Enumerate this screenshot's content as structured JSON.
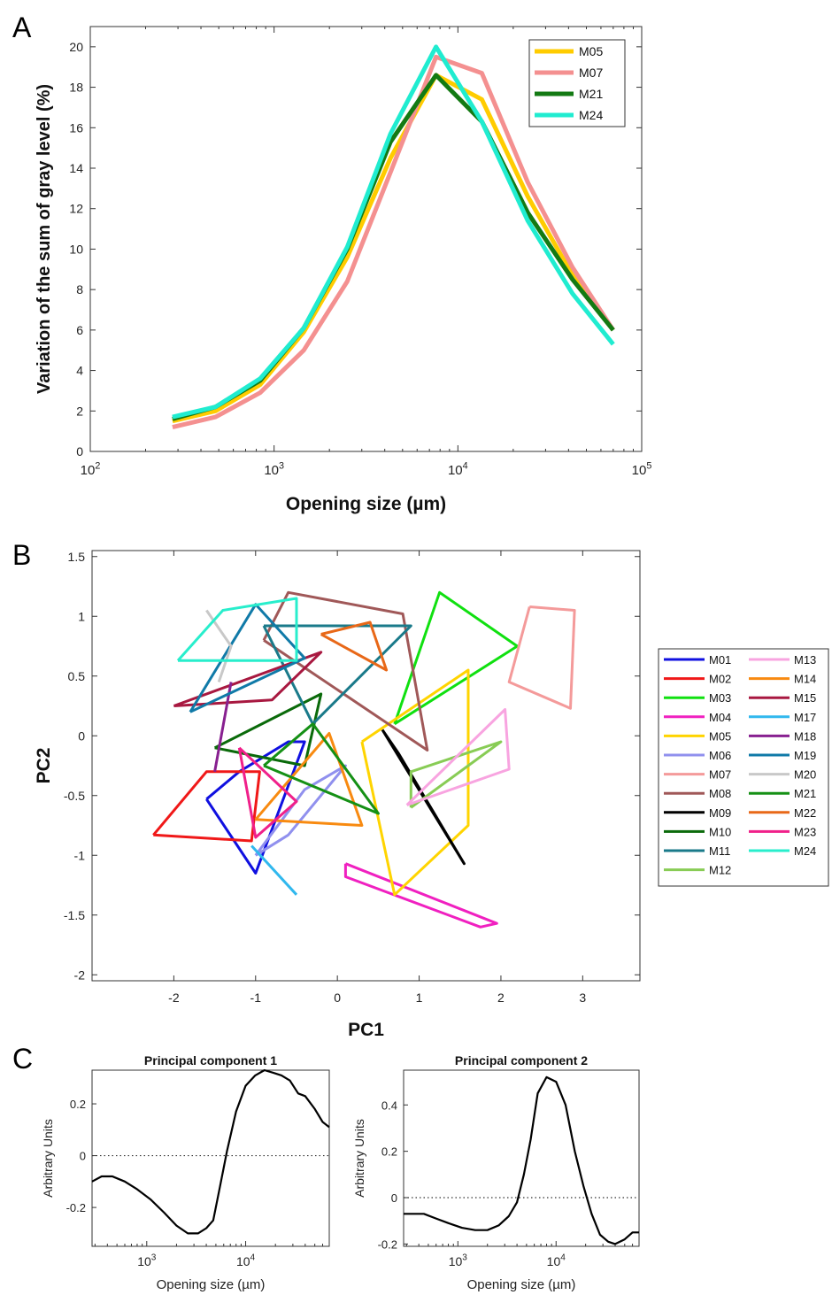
{
  "panel_labels": [
    "A",
    "B",
    "C"
  ],
  "colors": {
    "M01": "#1010e0",
    "M02": "#f01818",
    "M03": "#10e010",
    "M04": "#f020c0",
    "M05": "#ffd400",
    "M06": "#9090ee",
    "M07": "#f49a9a",
    "M08": "#a05858",
    "M09": "#000000",
    "M10": "#0a6a0a",
    "M11": "#1a7a8a",
    "M12": "#88cc55",
    "M13": "#f8a4e0",
    "M14": "#f88a10",
    "M15": "#a81840",
    "M17": "#30b8ee",
    "M18": "#882090",
    "M19": "#107aa8",
    "M20": "#c8c8c8",
    "M21": "#159015",
    "M22": "#e86818",
    "M23": "#f0208a",
    "M24": "#28eecc",
    "M05_A": "#ffcc00",
    "M07_A": "#f49090",
    "M21_A": "#137a13",
    "M24_A": "#20ecd0"
  },
  "chart_data": [
    {
      "type": "line",
      "xscale": "log",
      "xlabel": "Opening size (µm)",
      "ylabel": "Variation of the sum of gray level (%)",
      "xlim": [
        100,
        100000
      ],
      "ylim": [
        0,
        21
      ],
      "xticks": [
        {
          "value": 100,
          "base": "10",
          "exp": "2"
        },
        {
          "value": 1000,
          "base": "10",
          "exp": "3"
        },
        {
          "value": 10000,
          "base": "10",
          "exp": "4"
        },
        {
          "value": 100000,
          "base": "10",
          "exp": "5"
        }
      ],
      "yticks": [
        "0",
        "2",
        "4",
        "6",
        "8",
        "10",
        "12",
        "14",
        "16",
        "18",
        "20"
      ],
      "legend": "top-right",
      "x": [
        280,
        480,
        840,
        1450,
        2500,
        4300,
        7600,
        13500,
        24000,
        42000,
        70000
      ],
      "series": [
        {
          "name": "M05",
          "color_key": "M05_A",
          "values": [
            1.5,
            2.0,
            3.3,
            5.9,
            9.6,
            14.5,
            18.6,
            17.4,
            12.6,
            8.7,
            6.0
          ]
        },
        {
          "name": "M07",
          "color_key": "M07_A",
          "values": [
            1.2,
            1.7,
            2.9,
            5.0,
            8.4,
            13.8,
            19.5,
            18.7,
            13.3,
            9.1,
            6.0
          ]
        },
        {
          "name": "M21",
          "color_key": "M21_A",
          "values": [
            1.6,
            2.2,
            3.5,
            6.1,
            10.0,
            15.3,
            18.6,
            16.3,
            11.8,
            8.5,
            6.0
          ]
        },
        {
          "name": "M24",
          "color_key": "M24_A",
          "values": [
            1.7,
            2.2,
            3.6,
            6.1,
            10.1,
            15.7,
            20.0,
            16.3,
            11.4,
            7.8,
            5.3
          ]
        }
      ]
    },
    {
      "type": "scatter",
      "xlabel": "PC1",
      "ylabel": "PC2",
      "xlim": [
        -3.0,
        3.7
      ],
      "ylim": [
        -2.05,
        1.55
      ],
      "xticks": [
        "-2",
        "-1",
        "0",
        "1",
        "2",
        "3"
      ],
      "yticks": [
        "-2",
        "-1.5",
        "-1",
        "-0.5",
        "0",
        "0.5",
        "1",
        "1.5"
      ],
      "legend": "right",
      "series": [
        {
          "name": "M01",
          "points": [
            [
              -1.6,
              -0.53
            ],
            [
              -1.2,
              -0.3
            ],
            [
              -0.6,
              -0.05
            ],
            [
              -0.4,
              -0.05
            ],
            [
              -1.0,
              -1.15
            ],
            [
              -1.6,
              -0.53
            ]
          ]
        },
        {
          "name": "M02",
          "points": [
            [
              -2.25,
              -0.83
            ],
            [
              -1.05,
              -0.88
            ],
            [
              -0.95,
              -0.3
            ],
            [
              -1.6,
              -0.3
            ],
            [
              -2.25,
              -0.83
            ]
          ]
        },
        {
          "name": "M03",
          "points": [
            [
              0.7,
              0.1
            ],
            [
              1.25,
              1.2
            ],
            [
              2.2,
              0.75
            ],
            [
              0.7,
              0.1
            ]
          ]
        },
        {
          "name": "M04",
          "points": [
            [
              0.1,
              -1.07
            ],
            [
              0.1,
              -1.18
            ],
            [
              1.75,
              -1.6
            ],
            [
              1.95,
              -1.57
            ],
            [
              0.1,
              -1.07
            ]
          ]
        },
        {
          "name": "M05",
          "points": [
            [
              0.3,
              -0.05
            ],
            [
              0.7,
              -1.33
            ],
            [
              1.6,
              -0.75
            ],
            [
              1.6,
              0.55
            ],
            [
              0.3,
              -0.05
            ]
          ]
        },
        {
          "name": "M06",
          "points": [
            [
              -1.0,
              -1.0
            ],
            [
              -0.6,
              -0.83
            ],
            [
              0.1,
              -0.25
            ],
            [
              -0.4,
              -0.45
            ],
            [
              -1.0,
              -1.0
            ]
          ]
        },
        {
          "name": "M07",
          "points": [
            [
              2.35,
              1.08
            ],
            [
              2.9,
              1.05
            ],
            [
              2.85,
              0.23
            ],
            [
              2.1,
              0.45
            ],
            [
              2.35,
              1.08
            ]
          ]
        },
        {
          "name": "M08",
          "points": [
            [
              -0.9,
              0.8
            ],
            [
              -0.6,
              1.2
            ],
            [
              0.8,
              1.02
            ],
            [
              1.1,
              -0.12
            ],
            [
              -0.9,
              0.8
            ]
          ]
        },
        {
          "name": "M09",
          "points": [
            [
              0.55,
              0.05
            ],
            [
              1.55,
              -1.07
            ],
            [
              0.75,
              -0.15
            ],
            [
              0.55,
              0.05
            ]
          ]
        },
        {
          "name": "M10",
          "points": [
            [
              -1.5,
              -0.1
            ],
            [
              -0.2,
              0.35
            ],
            [
              -0.4,
              -0.25
            ],
            [
              -1.5,
              -0.1
            ]
          ]
        },
        {
          "name": "M11",
          "points": [
            [
              -0.9,
              0.92
            ],
            [
              0.9,
              0.92
            ],
            [
              -0.3,
              0.1
            ],
            [
              -0.9,
              0.92
            ]
          ]
        },
        {
          "name": "M12",
          "points": [
            [
              0.9,
              -0.6
            ],
            [
              2.0,
              -0.05
            ],
            [
              0.9,
              -0.3
            ],
            [
              0.9,
              -0.6
            ]
          ]
        },
        {
          "name": "M13",
          "points": [
            [
              0.85,
              -0.58
            ],
            [
              2.1,
              -0.28
            ],
            [
              2.05,
              0.22
            ],
            [
              0.85,
              -0.58
            ]
          ]
        },
        {
          "name": "M14",
          "points": [
            [
              -1.0,
              -0.7
            ],
            [
              -0.1,
              0.02
            ],
            [
              0.3,
              -0.75
            ],
            [
              -1.0,
              -0.7
            ]
          ]
        },
        {
          "name": "M15",
          "points": [
            [
              -2.0,
              0.25
            ],
            [
              -0.8,
              0.3
            ],
            [
              -0.2,
              0.7
            ],
            [
              -2.0,
              0.25
            ]
          ]
        },
        {
          "name": "M17",
          "points": [
            [
              -1.05,
              -0.92
            ],
            [
              -0.5,
              -1.33
            ]
          ]
        },
        {
          "name": "M18",
          "points": [
            [
              -1.5,
              -0.3
            ],
            [
              -1.3,
              0.45
            ]
          ]
        },
        {
          "name": "M19",
          "points": [
            [
              -1.8,
              0.2
            ],
            [
              -1.0,
              1.1
            ],
            [
              -0.4,
              0.65
            ],
            [
              -1.8,
              0.2
            ]
          ]
        },
        {
          "name": "M20",
          "points": [
            [
              -1.6,
              1.05
            ],
            [
              -1.3,
              0.75
            ],
            [
              -1.45,
              0.45
            ]
          ]
        },
        {
          "name": "M21",
          "points": [
            [
              -0.9,
              -0.25
            ],
            [
              -0.3,
              0.1
            ],
            [
              0.5,
              -0.65
            ],
            [
              -0.9,
              -0.25
            ]
          ]
        },
        {
          "name": "M22",
          "points": [
            [
              -0.2,
              0.85
            ],
            [
              0.4,
              0.95
            ],
            [
              0.6,
              0.55
            ],
            [
              -0.2,
              0.85
            ]
          ]
        },
        {
          "name": "M23",
          "points": [
            [
              -1.2,
              -0.1
            ],
            [
              -0.5,
              -0.55
            ],
            [
              -1.0,
              -0.85
            ],
            [
              -1.2,
              -0.1
            ]
          ]
        },
        {
          "name": "M24",
          "points": [
            [
              -1.95,
              0.63
            ],
            [
              -1.4,
              1.05
            ],
            [
              -0.5,
              1.15
            ],
            [
              -0.5,
              0.63
            ],
            [
              -1.95,
              0.63
            ]
          ]
        }
      ],
      "legend_col1": [
        "M01",
        "M02",
        "M03",
        "M04",
        "M05",
        "M06",
        "M07",
        "M08",
        "M09",
        "M10",
        "M11",
        "M12"
      ],
      "legend_col2": [
        "M13",
        "M14",
        "M15",
        "M17",
        "M18",
        "M19",
        "M20",
        "M21",
        "M22",
        "M23",
        "M24"
      ]
    },
    {
      "type": "line",
      "title": "Principal component 1",
      "xscale": "log",
      "xlabel": "Opening size (µm)",
      "ylabel": "Arbitrary Units",
      "xlim": [
        280,
        70000
      ],
      "ylim": [
        -0.35,
        0.33
      ],
      "xticks": [
        {
          "value": 1000,
          "base": "10",
          "exp": "3"
        },
        {
          "value": 10000,
          "base": "10",
          "exp": "4"
        }
      ],
      "yticks": [
        {
          "value": -0.2,
          "label": "-0.2"
        },
        {
          "value": 0,
          "label": "0"
        },
        {
          "value": 0.2,
          "label": "0.2"
        }
      ],
      "zero_line": true,
      "x": [
        280,
        350,
        450,
        600,
        800,
        1100,
        1500,
        2000,
        2600,
        3300,
        4000,
        4700,
        5500,
        6500,
        8000,
        10000,
        12500,
        15500,
        19000,
        23000,
        28000,
        34000,
        40000,
        50000,
        60000,
        70000
      ],
      "values": [
        -0.1,
        -0.08,
        -0.08,
        -0.1,
        -0.13,
        -0.17,
        -0.22,
        -0.27,
        -0.3,
        -0.3,
        -0.28,
        -0.25,
        -0.12,
        0.02,
        0.17,
        0.27,
        0.31,
        0.33,
        0.32,
        0.31,
        0.29,
        0.24,
        0.23,
        0.18,
        0.13,
        0.11
      ]
    },
    {
      "type": "line",
      "title": "Principal component 2",
      "xscale": "log",
      "xlabel": "Opening size (µm)",
      "ylabel": "Arbitrary Units",
      "xlim": [
        280,
        70000
      ],
      "ylim": [
        -0.21,
        0.55
      ],
      "xticks": [
        {
          "value": 1000,
          "base": "10",
          "exp": "3"
        },
        {
          "value": 10000,
          "base": "10",
          "exp": "4"
        }
      ],
      "yticks": [
        {
          "value": -0.2,
          "label": "-0.2"
        },
        {
          "value": 0,
          "label": "0"
        },
        {
          "value": 0.2,
          "label": "0.2"
        },
        {
          "value": 0.4,
          "label": "0.4"
        }
      ],
      "zero_line": true,
      "x": [
        280,
        350,
        450,
        600,
        800,
        1100,
        1500,
        2000,
        2600,
        3300,
        4000,
        4700,
        5500,
        6500,
        8000,
        10000,
        12500,
        15500,
        19000,
        23000,
        28000,
        34000,
        40000,
        50000,
        60000,
        70000
      ],
      "values": [
        -0.07,
        -0.07,
        -0.07,
        -0.09,
        -0.11,
        -0.13,
        -0.14,
        -0.14,
        -0.12,
        -0.08,
        -0.02,
        0.1,
        0.25,
        0.45,
        0.52,
        0.5,
        0.4,
        0.2,
        0.05,
        -0.07,
        -0.16,
        -0.19,
        -0.2,
        -0.18,
        -0.15,
        -0.15
      ]
    }
  ]
}
